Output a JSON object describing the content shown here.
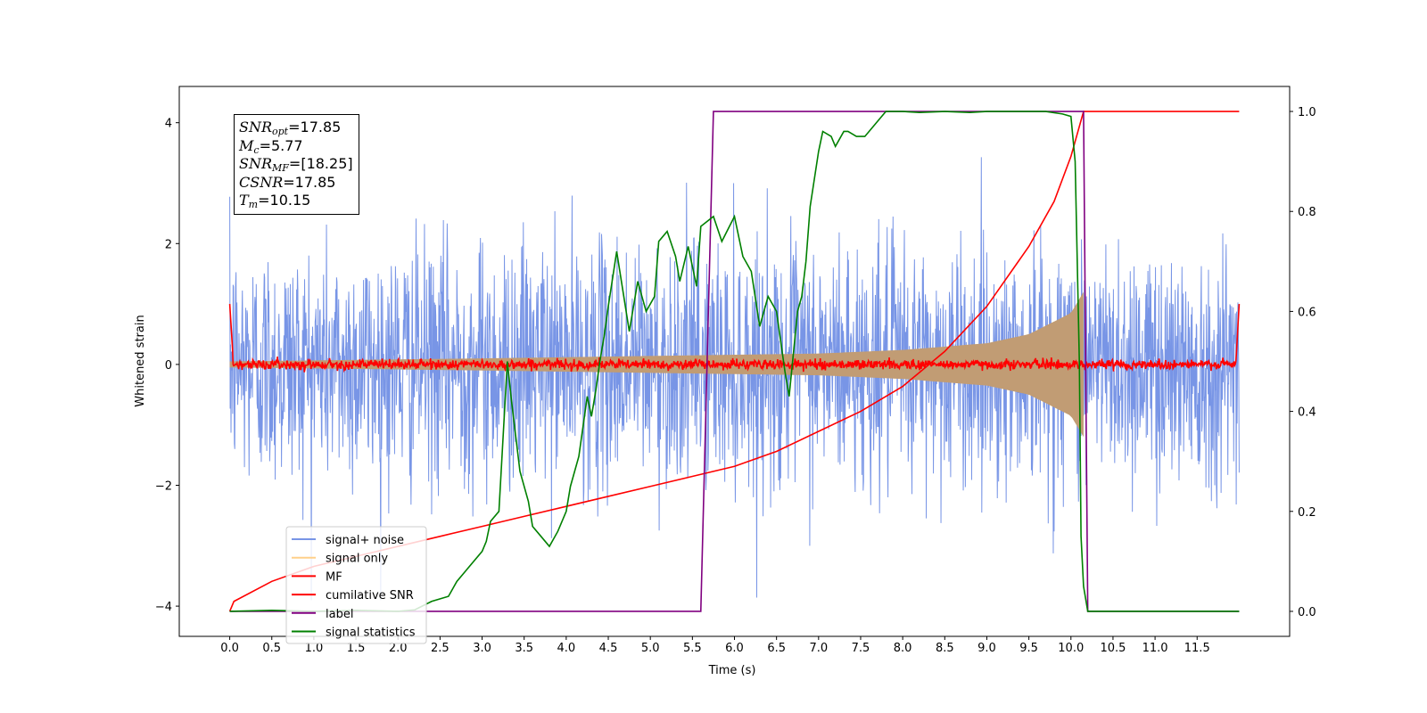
{
  "chart_data": {
    "type": "line",
    "xlabel": "Time (s)",
    "ylabel": "Whitened strain",
    "xlim": [
      -0.6,
      12.6
    ],
    "ylim_left": [
      -4.5,
      4.6
    ],
    "ylim_right": [
      -0.05,
      1.05
    ],
    "x_ticks": [
      0.0,
      0.5,
      1.0,
      1.5,
      2.0,
      2.5,
      3.0,
      3.5,
      4.0,
      4.5,
      5.0,
      5.5,
      6.0,
      6.5,
      7.0,
      7.5,
      8.0,
      8.5,
      9.0,
      9.5,
      10.0,
      10.5,
      11.0,
      11.5
    ],
    "x_tick_labels": [
      "0.0",
      "0.5",
      "1.0",
      "1.5",
      "2.0",
      "2.5",
      "3.0",
      "3.5",
      "4.0",
      "4.5",
      "5.0",
      "5.5",
      "6.0",
      "6.5",
      "7.0",
      "7.5",
      "8.0",
      "8.5",
      "9.0",
      "9.5",
      "10.0",
      "10.5",
      "11.0",
      "11.5"
    ],
    "y_left_ticks": [
      -4,
      -2,
      0,
      2,
      4
    ],
    "y_left_tick_labels": [
      "−4",
      "−2",
      "0",
      "2",
      "4"
    ],
    "y_right_ticks": [
      0.0,
      0.2,
      0.4,
      0.6,
      0.8,
      1.0
    ],
    "y_right_tick_labels": [
      "0.0",
      "0.2",
      "0.4",
      "0.6",
      "0.8",
      "1.0"
    ],
    "annotation": {
      "snr_opt": "17.85",
      "mc": "5.77",
      "snr_mf": "[18.25]",
      "csnr": "17.85",
      "tm": "10.15"
    },
    "legend": [
      "signal+ noise",
      "signal only",
      "MF",
      "cumilative SNR",
      "label",
      "signal statistics"
    ],
    "series": [
      {
        "name": "signal+ noise",
        "axis": "left",
        "color": "#7895e6",
        "sigma": 1.0,
        "x_range": [
          0.0,
          12.0
        ]
      },
      {
        "name": "signal only",
        "axis": "left",
        "color": "#ffd08a",
        "fill_color": "#c19c74",
        "amplitude": {
          "x": [
            0,
            3,
            5,
            7,
            8,
            9,
            9.5,
            10,
            10.15
          ],
          "y": [
            0.05,
            0.1,
            0.14,
            0.18,
            0.24,
            0.35,
            0.5,
            0.85,
            1.2
          ]
        }
      },
      {
        "name": "MF",
        "axis": "left",
        "color": "#ff0000",
        "sigma": 0.04,
        "x_range": [
          0.0,
          12.0
        ]
      },
      {
        "name": "cumilative SNR",
        "axis": "right",
        "color": "#ff0000",
        "x": [
          0,
          0.05,
          0.5,
          1,
          1.5,
          2,
          2.5,
          3,
          3.5,
          4,
          4.5,
          5,
          5.5,
          6,
          6.5,
          7,
          7.5,
          8,
          8.5,
          9,
          9.5,
          9.8,
          10,
          10.15,
          10.2,
          12.0
        ],
        "y": [
          0.0,
          0.02,
          0.06,
          0.09,
          0.11,
          0.13,
          0.15,
          0.17,
          0.19,
          0.21,
          0.23,
          0.25,
          0.27,
          0.29,
          0.32,
          0.36,
          0.4,
          0.45,
          0.52,
          0.61,
          0.73,
          0.82,
          0.91,
          1.0,
          1.0,
          1.0
        ]
      },
      {
        "name": "label",
        "axis": "right",
        "color": "#800080",
        "x": [
          0,
          5.6,
          5.75,
          10.15,
          10.2,
          12.0
        ],
        "y": [
          0,
          0,
          1,
          1,
          0,
          0
        ]
      },
      {
        "name": "signal statistics",
        "axis": "right",
        "color": "#008000",
        "x": [
          0,
          0.5,
          1,
          1.5,
          2,
          2.2,
          2.4,
          2.6,
          2.7,
          2.8,
          2.9,
          3.0,
          3.05,
          3.1,
          3.2,
          3.3,
          3.35,
          3.45,
          3.55,
          3.6,
          3.7,
          3.8,
          3.9,
          4.0,
          4.05,
          4.15,
          4.25,
          4.3,
          4.35,
          4.4,
          4.45,
          4.5,
          4.6,
          4.75,
          4.85,
          4.95,
          5.05,
          5.1,
          5.2,
          5.3,
          5.35,
          5.45,
          5.55,
          5.6,
          5.75,
          5.85,
          6.0,
          6.1,
          6.2,
          6.3,
          6.4,
          6.5,
          6.6,
          6.65,
          6.75,
          6.8,
          6.85,
          6.9,
          7.0,
          7.05,
          7.15,
          7.2,
          7.3,
          7.35,
          7.45,
          7.55,
          7.6,
          7.7,
          7.8,
          7.9,
          8.0,
          8.2,
          8.5,
          8.8,
          9.0,
          9.3,
          9.7,
          9.9,
          10.0,
          10.05,
          10.1,
          10.12,
          10.15,
          10.2,
          12.0
        ],
        "y": [
          0,
          0.002,
          0,
          0.002,
          0,
          0.003,
          0.02,
          0.03,
          0.06,
          0.08,
          0.1,
          0.12,
          0.14,
          0.18,
          0.2,
          0.5,
          0.42,
          0.28,
          0.22,
          0.17,
          0.15,
          0.13,
          0.16,
          0.2,
          0.25,
          0.31,
          0.43,
          0.39,
          0.44,
          0.5,
          0.55,
          0.61,
          0.72,
          0.56,
          0.66,
          0.6,
          0.63,
          0.74,
          0.76,
          0.71,
          0.66,
          0.73,
          0.65,
          0.77,
          0.79,
          0.74,
          0.79,
          0.71,
          0.68,
          0.57,
          0.63,
          0.6,
          0.48,
          0.43,
          0.6,
          0.63,
          0.7,
          0.81,
          0.92,
          0.96,
          0.95,
          0.93,
          0.96,
          0.96,
          0.95,
          0.95,
          0.96,
          0.98,
          1.0,
          1.0,
          1.0,
          0.998,
          1.0,
          0.998,
          1.0,
          1.0,
          1.0,
          0.995,
          0.99,
          0.9,
          0.5,
          0.15,
          0.05,
          0.0,
          0.0
        ]
      }
    ]
  }
}
